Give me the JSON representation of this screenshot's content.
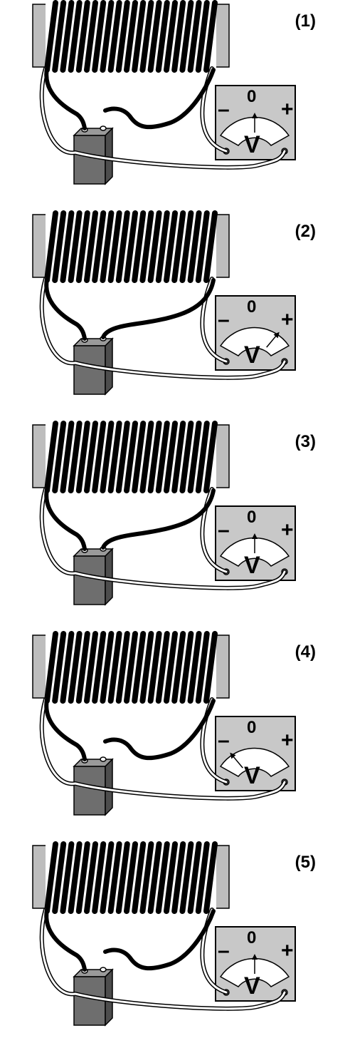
{
  "colors": {
    "core": "#bdbdbd",
    "coil": "#000000",
    "battery": "#6e6e6e",
    "meter_face": "#c8c8c8",
    "dial": "#ffffff"
  },
  "panels": [
    {
      "label": "(1)",
      "needle_deg": 0,
      "wire_connected": false,
      "meter": {
        "zero": "0",
        "minus": "–",
        "plus": "+",
        "unit": "V"
      }
    },
    {
      "label": "(2)",
      "needle_deg": 40,
      "wire_connected": true,
      "meter": {
        "zero": "0",
        "minus": "–",
        "plus": "+",
        "unit": "V"
      }
    },
    {
      "label": "(3)",
      "needle_deg": 0,
      "wire_connected": true,
      "meter": {
        "zero": "0",
        "minus": "–",
        "plus": "+",
        "unit": "V"
      }
    },
    {
      "label": "(4)",
      "needle_deg": -40,
      "wire_connected": false,
      "meter": {
        "zero": "0",
        "minus": "–",
        "plus": "+",
        "unit": "V"
      }
    },
    {
      "label": "(5)",
      "needle_deg": 0,
      "wire_connected": false,
      "meter": {
        "zero": "0",
        "minus": "–",
        "plus": "+",
        "unit": "V"
      }
    }
  ]
}
